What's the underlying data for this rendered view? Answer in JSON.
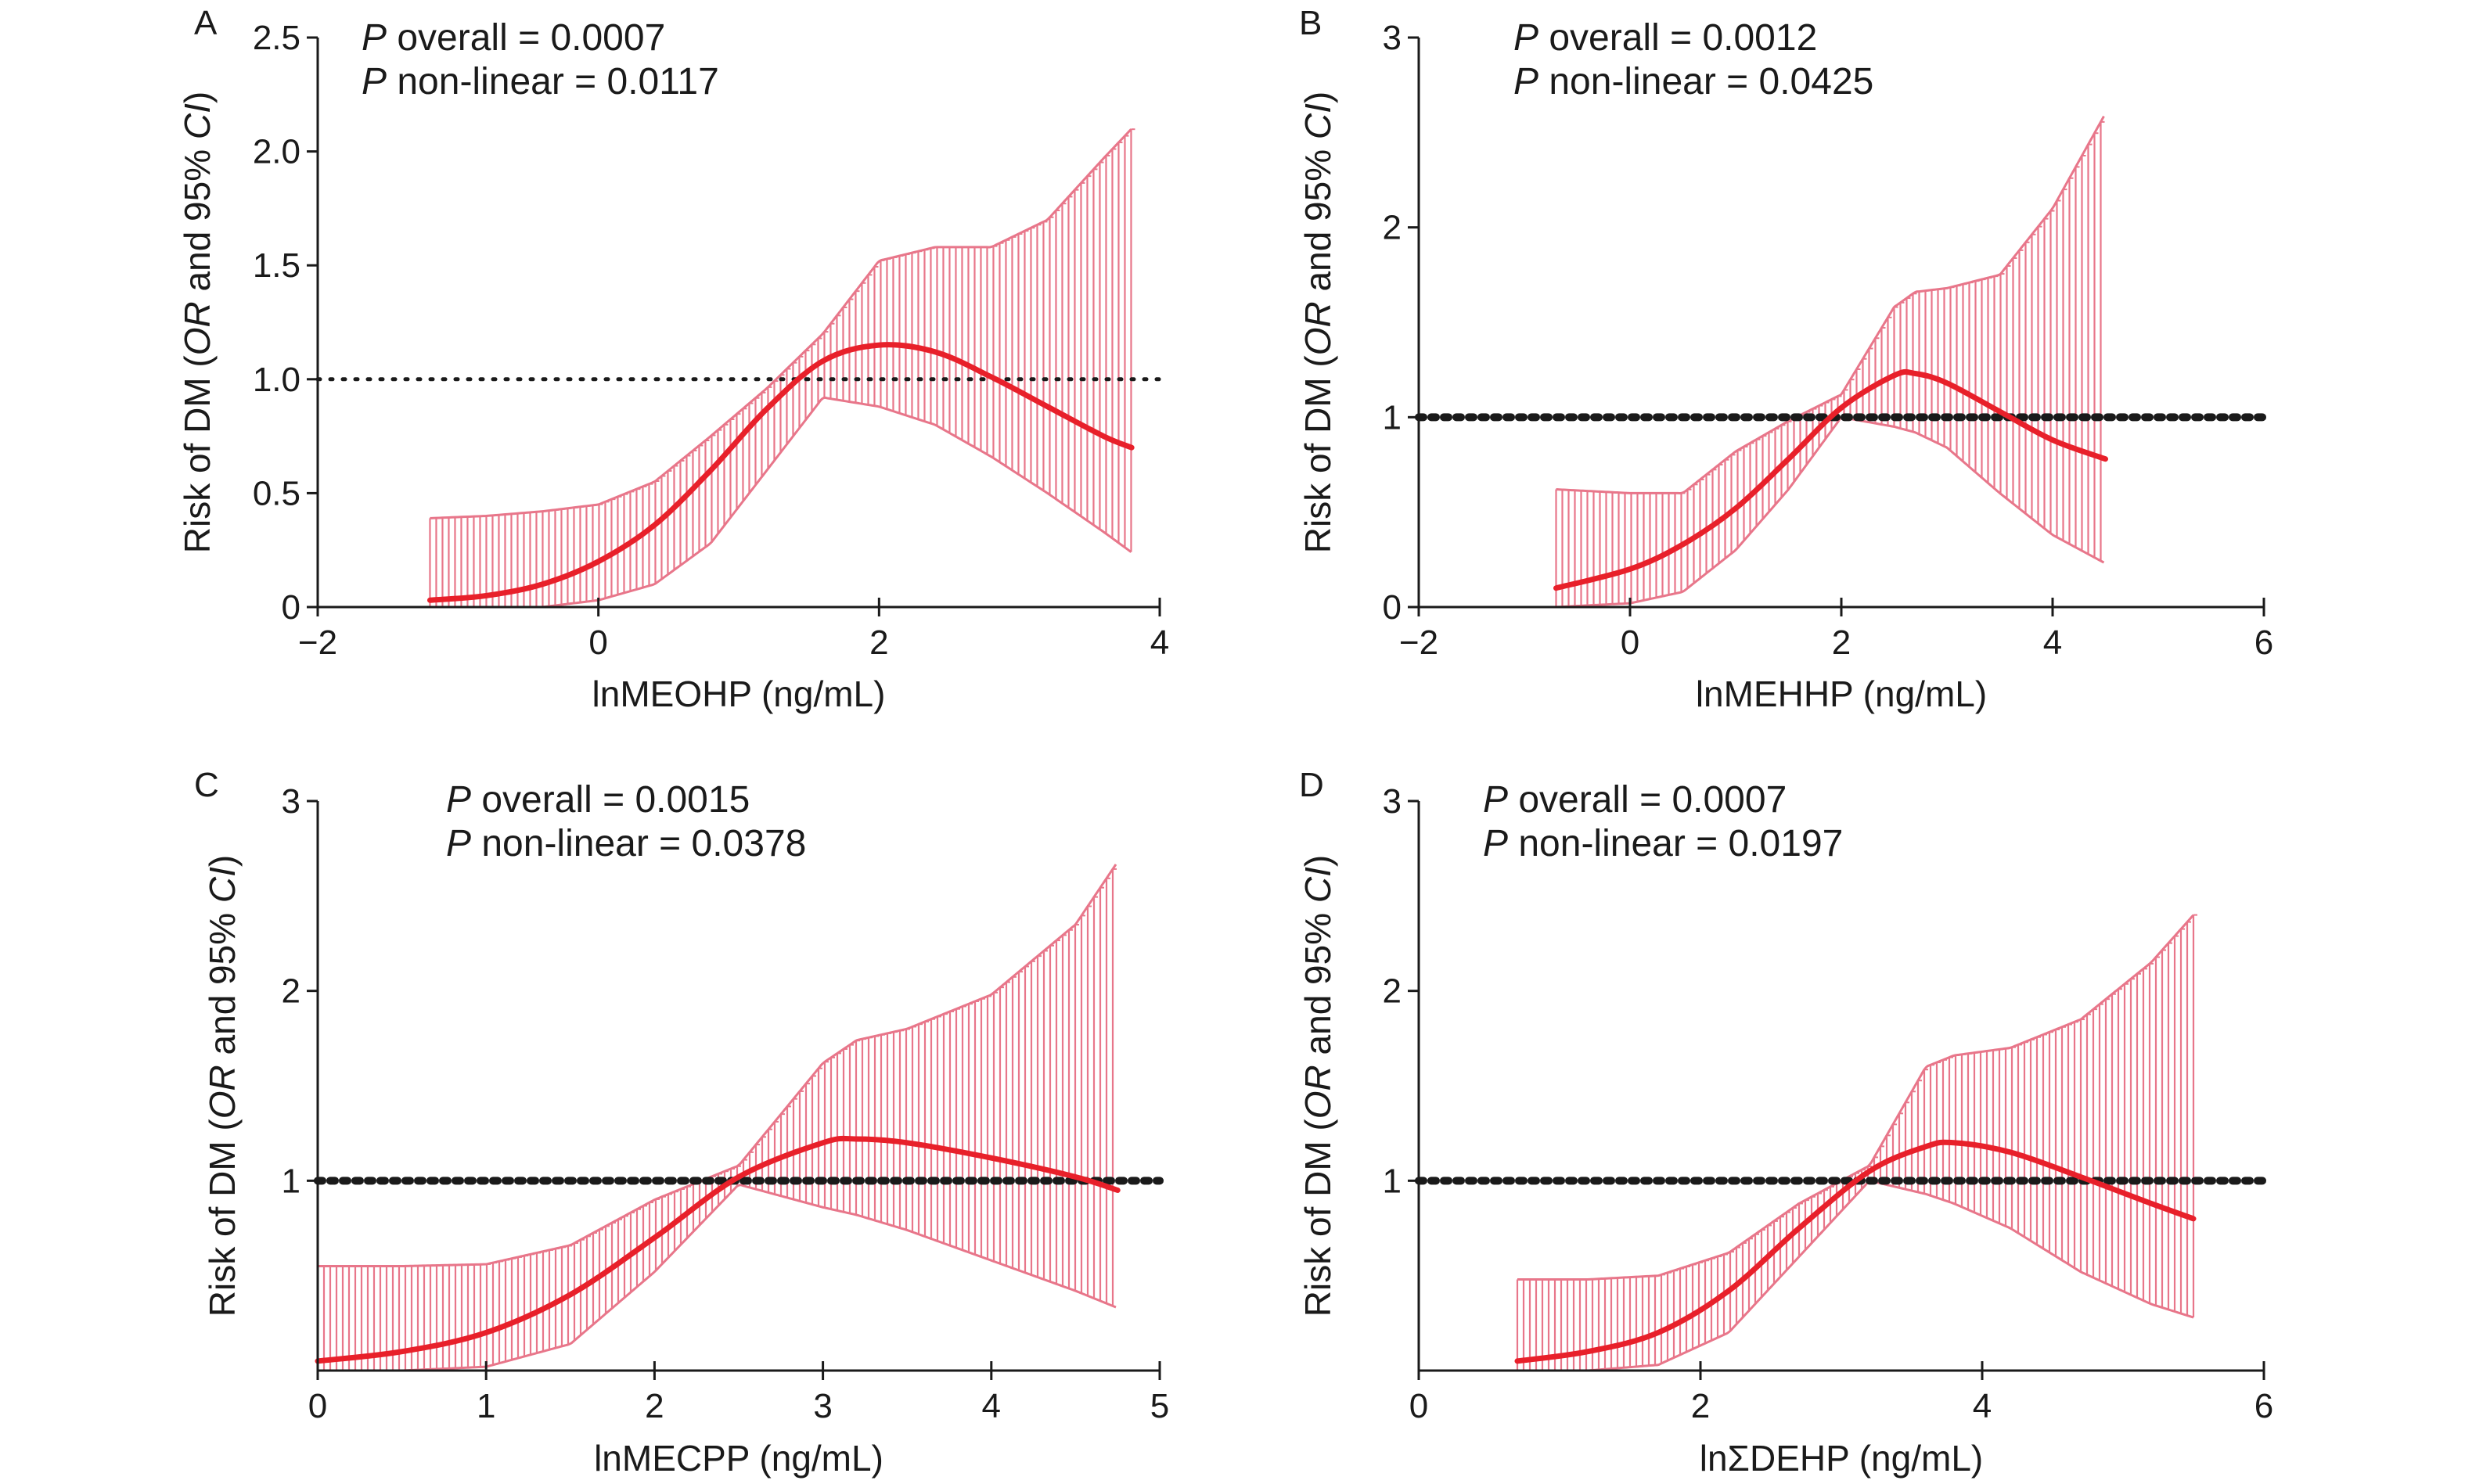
{
  "colors": {
    "curve": "#e8202a",
    "ci_band": "#e8768a",
    "reference_line": "#1a1a1a",
    "axis": "#1a1a1a"
  },
  "chart_data": [
    {
      "type": "line",
      "panel_letter": "A",
      "xlabel": "lnMEOHP (ng/mL)",
      "ylabel": {
        "prefix": "Risk of DM (",
        "italic1": "OR",
        "middle": " and 95% ",
        "italic2": "CI",
        "suffix": ")"
      },
      "annotations": {
        "p_symbol": "P",
        "p_overall": " overall = 0.0007",
        "p_nonlinear": " non-linear = 0.0117"
      },
      "xlim": [
        -2,
        4
      ],
      "ylim": [
        0,
        2.5
      ],
      "xticks": [
        -2,
        0,
        2,
        4
      ],
      "xtick_labels": [
        "−2",
        "0",
        "2",
        "4"
      ],
      "yticks": [
        0,
        0.5,
        1.0,
        1.5,
        2.0,
        2.5
      ],
      "ytick_labels": [
        "0",
        "0.5",
        "1.0",
        "1.5",
        "2.0",
        "2.5"
      ],
      "reference_y": 1,
      "series": [
        {
          "x": [
            -1.2,
            -0.8,
            -0.4,
            0.0,
            0.4,
            0.8,
            1.2,
            1.6,
            2.0,
            2.4,
            2.8,
            3.2,
            3.6,
            3.8
          ],
          "or": [
            0.03,
            0.05,
            0.1,
            0.2,
            0.36,
            0.6,
            0.87,
            1.08,
            1.15,
            1.12,
            1.01,
            0.88,
            0.75,
            0.7
          ],
          "lower": [
            0.0,
            0.0,
            0.0,
            0.03,
            0.1,
            0.28,
            0.6,
            0.92,
            0.88,
            0.8,
            0.66,
            0.5,
            0.33,
            0.24
          ],
          "upper": [
            0.39,
            0.4,
            0.42,
            0.45,
            0.55,
            0.75,
            0.96,
            1.2,
            1.52,
            1.58,
            1.58,
            1.7,
            1.97,
            2.1
          ]
        }
      ]
    },
    {
      "type": "line",
      "panel_letter": "B",
      "xlabel": "lnMEHHP (ng/mL)",
      "ylabel": {
        "prefix": "Risk of DM (",
        "italic1": "OR",
        "middle": " and 95% ",
        "italic2": "CI",
        "suffix": ")"
      },
      "annotations": {
        "p_symbol": "P",
        "p_overall": " overall = 0.0012",
        "p_nonlinear": " non-linear = 0.0425"
      },
      "xlim": [
        -2,
        6
      ],
      "ylim": [
        0,
        3
      ],
      "xticks": [
        -2,
        0,
        2,
        4,
        6
      ],
      "xtick_labels": [
        "−2",
        "0",
        "2",
        "4",
        "6"
      ],
      "yticks": [
        0,
        1,
        2,
        3
      ],
      "ytick_labels": [
        "0",
        "1",
        "2",
        "3"
      ],
      "reference_y": 1,
      "series": [
        {
          "x": [
            -0.7,
            0.0,
            0.5,
            1.0,
            1.5,
            2.0,
            2.5,
            2.7,
            3.0,
            3.5,
            4.0,
            4.5
          ],
          "or": [
            0.1,
            0.2,
            0.33,
            0.52,
            0.78,
            1.05,
            1.22,
            1.23,
            1.18,
            1.03,
            0.88,
            0.78
          ],
          "lower": [
            0.0,
            0.02,
            0.08,
            0.3,
            0.62,
            1.0,
            0.95,
            0.92,
            0.84,
            0.6,
            0.38,
            0.23
          ],
          "upper": [
            0.62,
            0.6,
            0.6,
            0.82,
            0.98,
            1.12,
            1.58,
            1.66,
            1.68,
            1.75,
            2.1,
            2.6
          ]
        }
      ]
    },
    {
      "type": "line",
      "panel_letter": "C",
      "xlabel": "lnMECPP (ng/mL)",
      "ylabel": {
        "prefix": "Risk of DM (",
        "italic1": "OR",
        "middle": " and 95% ",
        "italic2": "CI",
        "suffix": ")"
      },
      "annotations": {
        "p_symbol": "P",
        "p_overall": " overall = 0.0015",
        "p_nonlinear": " non-linear = 0.0378"
      },
      "xlim": [
        0,
        5
      ],
      "ylim": [
        0,
        3
      ],
      "xticks": [
        0,
        1,
        2,
        3,
        4,
        5
      ],
      "xtick_labels": [
        "0",
        "1",
        "2",
        "3",
        "4",
        "5"
      ],
      "yticks": [
        1,
        2,
        3
      ],
      "ytick_labels": [
        "1",
        "2",
        "3"
      ],
      "reference_y": 1,
      "series": [
        {
          "x": [
            0.0,
            0.5,
            1.0,
            1.5,
            2.0,
            2.5,
            3.0,
            3.2,
            3.5,
            4.0,
            4.5,
            4.75
          ],
          "or": [
            0.05,
            0.1,
            0.2,
            0.4,
            0.7,
            1.02,
            1.2,
            1.22,
            1.2,
            1.12,
            1.02,
            0.95
          ],
          "lower": [
            0.0,
            0.0,
            0.02,
            0.14,
            0.52,
            0.98,
            0.86,
            0.82,
            0.74,
            0.58,
            0.42,
            0.33
          ],
          "upper": [
            0.55,
            0.55,
            0.56,
            0.66,
            0.9,
            1.08,
            1.62,
            1.74,
            1.8,
            1.98,
            2.35,
            2.68
          ]
        }
      ]
    },
    {
      "type": "line",
      "panel_letter": "D",
      "xlabel": "lnΣDEHP (ng/mL)",
      "ylabel": {
        "prefix": "Risk of DM (",
        "italic1": "OR",
        "middle": " and 95% ",
        "italic2": "CI",
        "suffix": ")"
      },
      "annotations": {
        "p_symbol": "P",
        "p_overall": " overall = 0.0007",
        "p_nonlinear": " non-linear = 0.0197"
      },
      "xlim": [
        0,
        6
      ],
      "ylim": [
        0,
        3
      ],
      "xticks": [
        0,
        2,
        4,
        6
      ],
      "xtick_labels": [
        "0",
        "2",
        "4",
        "6"
      ],
      "yticks": [
        1,
        2,
        3
      ],
      "ytick_labels": [
        "1",
        "2",
        "3"
      ],
      "reference_y": 1,
      "series": [
        {
          "x": [
            0.7,
            1.2,
            1.7,
            2.2,
            2.7,
            3.2,
            3.6,
            3.8,
            4.2,
            4.7,
            5.2,
            5.5
          ],
          "or": [
            0.05,
            0.1,
            0.2,
            0.42,
            0.75,
            1.05,
            1.18,
            1.2,
            1.15,
            1.02,
            0.88,
            0.8
          ],
          "lower": [
            0.0,
            0.0,
            0.03,
            0.2,
            0.6,
            1.0,
            0.93,
            0.88,
            0.75,
            0.52,
            0.35,
            0.28
          ],
          "upper": [
            0.48,
            0.48,
            0.5,
            0.62,
            0.88,
            1.08,
            1.6,
            1.66,
            1.7,
            1.85,
            2.15,
            2.4
          ]
        }
      ]
    }
  ]
}
